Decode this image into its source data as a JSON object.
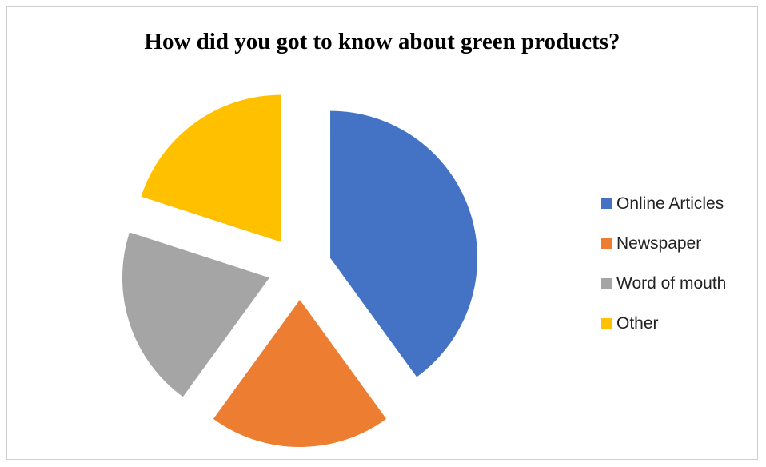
{
  "chart_data": {
    "type": "pie",
    "title": "How did you got to know about green products?",
    "categories": [
      "Online Articles",
      "Newspaper",
      "Word of mouth",
      "Other"
    ],
    "values": [
      40,
      20,
      20,
      20
    ],
    "colors": [
      "#4472C4",
      "#ED7D31",
      "#A5A5A5",
      "#FFC000"
    ],
    "exploded": true,
    "legend_position": "right"
  }
}
